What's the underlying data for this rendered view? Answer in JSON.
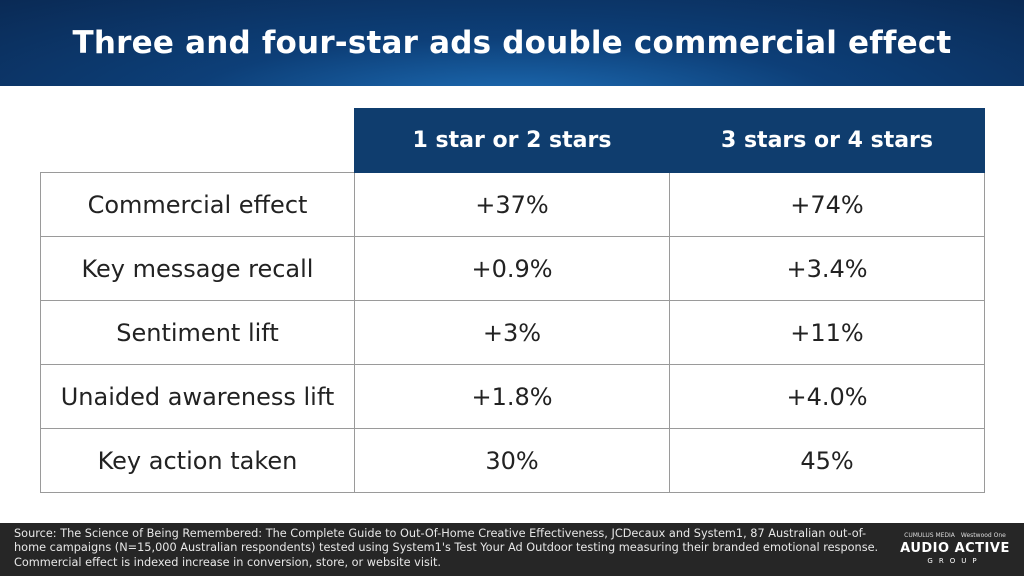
{
  "title": "Three and four-star ads double commercial effect",
  "table": {
    "columns": [
      "1 star or 2 stars",
      "3 stars or 4 stars"
    ],
    "rows": [
      {
        "label": "Commercial effect",
        "values": [
          "+37%",
          "+74%"
        ]
      },
      {
        "label": "Key message recall",
        "values": [
          "+0.9%",
          "+3.4%"
        ]
      },
      {
        "label": "Sentiment lift",
        "values": [
          "+3%",
          "+11%"
        ]
      },
      {
        "label": "Unaided awareness lift",
        "values": [
          "+1.8%",
          "+4.0%"
        ]
      },
      {
        "label": "Key action taken",
        "values": [
          "30%",
          "45%"
        ]
      }
    ]
  },
  "footer": {
    "source": "Source: The Science of Being Remembered: The Complete Guide to Out-Of-Home Creative Effectiveness, JCDecaux and System1, 87 Australian out-of-home campaigns (N=15,000 Australian respondents) tested using System1's Test Your Ad Outdoor testing measuring their branded emotional response. Commercial effect is indexed increase in conversion, store, or website visit.",
    "logo_left": "CUMULUS MEDIA",
    "logo_right": "Westwood One",
    "logo_main": "AUDIO ACTIVE",
    "logo_sub": "GROUP"
  }
}
